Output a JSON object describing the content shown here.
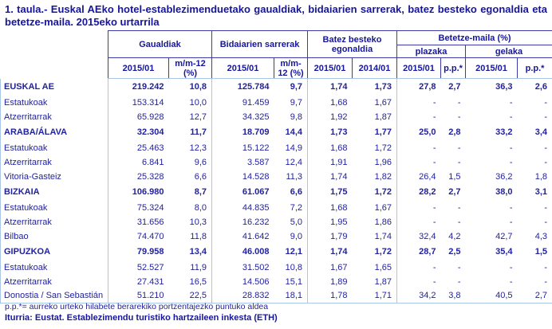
{
  "title": "1. taula.- Euskal AEko hotel-establezimenduetako gaualdiak, bidaiarien sarrerak, batez besteko egonaldia eta betetze-maila. 2015eko urtarrila",
  "table": {
    "col_groups": [
      {
        "label": "Gaualdiak",
        "columns": [
          "2015/01",
          "m/m-12 (%)"
        ]
      },
      {
        "label": "Bidaiarien sarrerak",
        "columns": [
          "2015/01",
          "m/m-12 (%)"
        ]
      },
      {
        "label": "Batez besteko egonaldia",
        "columns": [
          "2015/01",
          "2014/01"
        ]
      },
      {
        "label": "Betetze-maila (%)",
        "subgroups": [
          {
            "label": "plazaka",
            "columns": [
              "2015/01",
              "p.p.*"
            ]
          },
          {
            "label": "gelaka",
            "columns": [
              "2015/01",
              "p.p.*"
            ]
          }
        ]
      }
    ],
    "rows": [
      {
        "label": "EUSKAL AE",
        "bold": true,
        "values": [
          "219.242",
          "10,8",
          "125.784",
          "9,7",
          "1,74",
          "1,73",
          "27,8",
          "2,7",
          "36,3",
          "2,6"
        ]
      },
      {
        "label": "Estatukoak",
        "bold": false,
        "values": [
          "153.314",
          "10,0",
          "91.459",
          "9,7",
          "1,68",
          "1,67",
          "-",
          "-",
          "-",
          "-"
        ]
      },
      {
        "label": "Atzerritarrak",
        "bold": false,
        "values": [
          "65.928",
          "12,7",
          "34.325",
          "9,8",
          "1,92",
          "1,87",
          "-",
          "-",
          "-",
          "-"
        ]
      },
      {
        "label": "ARABA/ÁLAVA",
        "bold": true,
        "values": [
          "32.304",
          "11,7",
          "18.709",
          "14,4",
          "1,73",
          "1,77",
          "25,0",
          "2,8",
          "33,2",
          "3,4"
        ]
      },
      {
        "label": "Estatukoak",
        "bold": false,
        "values": [
          "25.463",
          "12,3",
          "15.122",
          "14,9",
          "1,68",
          "1,72",
          "-",
          "-",
          "-",
          "-"
        ]
      },
      {
        "label": "Atzerritarrak",
        "bold": false,
        "values": [
          "6.841",
          "9,6",
          "3.587",
          "12,4",
          "1,91",
          "1,96",
          "-",
          "-",
          "-",
          "-"
        ]
      },
      {
        "label": "Vitoria-Gasteiz",
        "bold": false,
        "values": [
          "25.328",
          "6,6",
          "14.528",
          "11,3",
          "1,74",
          "1,82",
          "26,4",
          "1,5",
          "36,2",
          "1,8"
        ]
      },
      {
        "label": "BIZKAIA",
        "bold": true,
        "values": [
          "106.980",
          "8,7",
          "61.067",
          "6,6",
          "1,75",
          "1,72",
          "28,2",
          "2,7",
          "38,0",
          "3,1"
        ]
      },
      {
        "label": "Estatukoak",
        "bold": false,
        "values": [
          "75.324",
          "8,0",
          "44.835",
          "7,2",
          "1,68",
          "1,67",
          "-",
          "-",
          "-",
          "-"
        ]
      },
      {
        "label": "Atzerritarrak",
        "bold": false,
        "values": [
          "31.656",
          "10,3",
          "16.232",
          "5,0",
          "1,95",
          "1,86",
          "-",
          "-",
          "-",
          "-"
        ]
      },
      {
        "label": "Bilbao",
        "bold": false,
        "values": [
          "74.470",
          "11,8",
          "41.642",
          "9,0",
          "1,79",
          "1,74",
          "32,4",
          "4,2",
          "42,7",
          "4,3"
        ]
      },
      {
        "label": "GIPUZKOA",
        "bold": true,
        "values": [
          "79.958",
          "13,4",
          "46.008",
          "12,1",
          "1,74",
          "1,72",
          "28,7",
          "2,5",
          "35,4",
          "1,5"
        ]
      },
      {
        "label": "Estatukoak",
        "bold": false,
        "values": [
          "52.527",
          "11,9",
          "31.502",
          "10,8",
          "1,67",
          "1,65",
          "-",
          "-",
          "-",
          "-"
        ]
      },
      {
        "label": "Atzerritarrak",
        "bold": false,
        "values": [
          "27.431",
          "16,5",
          "14.506",
          "15,1",
          "1,89",
          "1,87",
          "-",
          "-",
          "-",
          "-"
        ]
      },
      {
        "label": "Donostia / San Sebastián",
        "bold": false,
        "values": [
          "51.210",
          "22,5",
          "28.832",
          "18,1",
          "1,78",
          "1,71",
          "34,2",
          "3,8",
          "40,5",
          "2,7"
        ]
      }
    ]
  },
  "footnotes": {
    "definition": "p.p.*= aurreko urteko hilabete berarekiko portzentajezko puntuko aldea",
    "source": "Iturria: Eustat. Establezimendu turistiko hartzaileen inkesta (ETH)"
  },
  "colors": {
    "text_navy": "#16169b",
    "header_border": "#3a3aa8",
    "grid_border": "#a9c6e6"
  }
}
